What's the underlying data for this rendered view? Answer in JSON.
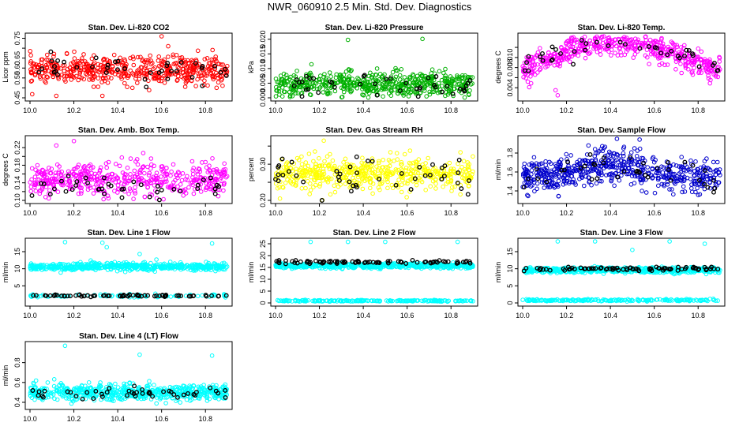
{
  "figure_title": "NWR_060910  2.5 Min. Std. Dev. Diagnostics",
  "chart_data": [
    {
      "type": "scatter",
      "title": "Stan. Dev. Li-820 CO2",
      "ylabel": "Licor ppm",
      "color": "#ff0000",
      "marker": "open-circle",
      "xlim": [
        10.0,
        10.9
      ],
      "ylim": [
        0.45,
        0.76
      ],
      "xticks": [
        "10.0",
        "10.2",
        "10.4",
        "10.6",
        "10.8"
      ],
      "yticks": [
        "0.45",
        "0.50",
        "0.55",
        "0.60",
        "0.65",
        "0.70",
        "0.75"
      ],
      "yticklabels": [
        "0.45",
        "",
        "0.55",
        "0.60",
        "0.65",
        "",
        "0.75"
      ],
      "n_points": 520,
      "mean": 0.59,
      "spread": 0.035,
      "highlighted": {
        "color": "#000000",
        "n_points": 40,
        "mean": 0.59,
        "spread": 0.03
      },
      "outliers": [
        {
          "x": 10.6,
          "y": 0.76
        },
        {
          "x": 10.12,
          "y": 0.46
        },
        {
          "x": 10.33,
          "y": 0.46
        },
        {
          "x": 10.63,
          "y": 0.71
        }
      ]
    },
    {
      "type": "scatter",
      "title": "Stan. Dev. Li-820 Pressure",
      "ylabel": "kPa",
      "color": "#00b000",
      "marker": "open-circle",
      "xlim": [
        10.0,
        10.9
      ],
      "ylim": [
        0.0,
        0.021
      ],
      "xticks": [
        "10.0",
        "10.2",
        "10.4",
        "10.6",
        "10.8"
      ],
      "yticks": [
        "0.000",
        "0.005",
        "0.010",
        "0.015",
        "0.020"
      ],
      "yticklabels": [
        "0.000",
        "0.005",
        "0.010",
        "0.015",
        "0.020"
      ],
      "n_points": 560,
      "mean": 0.0045,
      "spread": 0.0022,
      "highlighted": {
        "color": "#000000",
        "n_points": 40,
        "mean": 0.0045,
        "spread": 0.002
      },
      "outliers": [
        {
          "x": 10.33,
          "y": 0.0198
        },
        {
          "x": 10.67,
          "y": 0.0201
        }
      ]
    },
    {
      "type": "scatter",
      "title": "Stan. Dev. Li-820 Temp.",
      "ylabel": "degrees C",
      "color": "#ff00ff",
      "marker": "open-circle",
      "xlim": [
        10.0,
        10.9
      ],
      "ylim": [
        0.002,
        0.0142
      ],
      "xticks": [
        "10.0",
        "10.2",
        "10.4",
        "10.6",
        "10.8"
      ],
      "yticks": [
        "0.004",
        "0.006",
        "0.008",
        "0.010",
        "0.012"
      ],
      "yticklabels": [
        "0.004",
        "",
        "0.008",
        "0.010",
        ""
      ],
      "n_points": 520,
      "trend": "arch",
      "mean": 0.0095,
      "spread": 0.0012,
      "highlighted": {
        "color": "#000000",
        "n_points": 40
      },
      "outliers": [
        {
          "x": 10.16,
          "y": 0.0025
        },
        {
          "x": 10.15,
          "y": 0.0035
        }
      ]
    },
    {
      "type": "scatter",
      "title": "Stan. Dev. Amb. Box Temp.",
      "ylabel": "degrees C",
      "color": "#ff00ff",
      "marker": "open-circle",
      "xlim": [
        10.0,
        10.9
      ],
      "ylim": [
        0.1,
        0.24
      ],
      "xticks": [
        "10.0",
        "10.2",
        "10.4",
        "10.6",
        "10.8"
      ],
      "yticks": [
        "0.10",
        "0.12",
        "0.14",
        "0.16",
        "0.18",
        "0.20",
        "0.22"
      ],
      "yticklabels": [
        "0.10",
        "",
        "0.14",
        "",
        "0.18",
        "",
        "0.22"
      ],
      "n_points": 480,
      "mean": 0.145,
      "spread": 0.02,
      "highlighted": {
        "color": "#000000",
        "n_points": 40,
        "mean": 0.13,
        "spread": 0.012
      },
      "outliers": [
        {
          "x": 10.2,
          "y": 0.235
        },
        {
          "x": 10.12,
          "y": 0.225
        }
      ]
    },
    {
      "type": "scatter",
      "title": "Stan. Dev. Gas Stream RH",
      "ylabel": "percent",
      "color": "#ffff00",
      "marker": "open-circle",
      "xlim": [
        10.0,
        10.9
      ],
      "ylim": [
        0.2,
        0.37
      ],
      "xticks": [
        "10.0",
        "10.2",
        "10.4",
        "10.6",
        "10.8"
      ],
      "yticks": [
        "0.20",
        "0.25",
        "0.30",
        "0.35"
      ],
      "yticklabels": [
        "0.20",
        "",
        "0.30",
        ""
      ],
      "n_points": 520,
      "mean": 0.275,
      "spread": 0.022,
      "highlighted": {
        "color": "#000000",
        "n_points": 45,
        "mean": 0.27,
        "spread": 0.025
      },
      "outliers": [
        {
          "x": 10.22,
          "y": 0.365
        },
        {
          "x": 10.02,
          "y": 0.205
        }
      ]
    },
    {
      "type": "scatter",
      "title": "Stan. Dev. Sample Flow",
      "ylabel": "ml/min",
      "color": "#0000cc",
      "marker": "open-circle",
      "xlim": [
        10.0,
        10.9
      ],
      "ylim": [
        1.3,
        1.95
      ],
      "xticks": [
        "10.0",
        "10.2",
        "10.4",
        "10.6",
        "10.8"
      ],
      "yticks": [
        "1.4",
        "1.6",
        "1.8"
      ],
      "yticklabels": [
        "1.4",
        "1.6",
        "1.8"
      ],
      "n_points": 600,
      "trend": "bump",
      "mean": 1.55,
      "spread": 0.09,
      "highlighted": {
        "color": "#000000",
        "n_points": 40
      },
      "outliers": [
        {
          "x": 10.43,
          "y": 1.95
        },
        {
          "x": 10.3,
          "y": 1.88
        }
      ]
    },
    {
      "type": "scatter",
      "title": "Stan. Dev. Line 1 Flow",
      "ylabel": "ml/min",
      "color": "#00ffff",
      "marker": "open-circle",
      "xlim": [
        10.0,
        10.9
      ],
      "ylim": [
        0,
        18
      ],
      "xticks": [
        "10.0",
        "10.2",
        "10.4",
        "10.6",
        "10.8"
      ],
      "yticks": [
        "5",
        "10",
        "15"
      ],
      "yticklabels": [
        "5",
        "10",
        "15"
      ],
      "bands": [
        {
          "color": "#00ffff",
          "n_points": 560,
          "mean": 10.6,
          "spread": 0.55
        },
        {
          "color": "#00ffff",
          "n_points": 90,
          "mean": 2.1,
          "spread": 0.2
        },
        {
          "color": "#000000",
          "n_points": 70,
          "mean": 2.1,
          "spread": 0.15
        }
      ],
      "outliers": [
        {
          "x": 10.16,
          "y": 17.8
        },
        {
          "x": 10.33,
          "y": 17.6
        },
        {
          "x": 10.35,
          "y": 16.3
        },
        {
          "x": 10.5,
          "y": 14.3
        },
        {
          "x": 10.83,
          "y": 17.4
        }
      ]
    },
    {
      "type": "scatter",
      "title": "Stan. Dev. Line 2 Flow",
      "ylabel": "ml/min",
      "color": "#00ffff",
      "marker": "open-circle",
      "xlim": [
        10.0,
        10.9
      ],
      "ylim": [
        0,
        26
      ],
      "xticks": [
        "10.0",
        "10.2",
        "10.4",
        "10.6",
        "10.8"
      ],
      "yticks": [
        "0",
        "5",
        "10",
        "15",
        "20",
        "25"
      ],
      "yticklabels": [
        "0",
        "5",
        "10",
        "15",
        "20",
        "25"
      ],
      "bands": [
        {
          "color": "#00ffff",
          "n_points": 560,
          "mean": 15.7,
          "spread": 0.5
        },
        {
          "color": "#000000",
          "n_points": 80,
          "mean": 17.3,
          "spread": 0.3
        },
        {
          "color": "#00ffff",
          "n_points": 200,
          "mean": 0.9,
          "spread": 0.15
        }
      ],
      "outliers": [
        {
          "x": 10.16,
          "y": 25.8
        },
        {
          "x": 10.33,
          "y": 25.8
        },
        {
          "x": 10.5,
          "y": 25.8
        },
        {
          "x": 10.83,
          "y": 25.8
        }
      ]
    },
    {
      "type": "scatter",
      "title": "Stan. Dev. Line 3 Flow",
      "ylabel": "ml/min",
      "color": "#00ffff",
      "marker": "open-circle",
      "xlim": [
        10.0,
        10.9
      ],
      "ylim": [
        0,
        18
      ],
      "xticks": [
        "10.0",
        "10.2",
        "10.4",
        "10.6",
        "10.8"
      ],
      "yticks": [
        "0",
        "5",
        "10",
        "15"
      ],
      "yticklabels": [
        "0",
        "5",
        "10",
        "15"
      ],
      "bands": [
        {
          "color": "#00ffff",
          "n_points": 560,
          "mean": 9.6,
          "spread": 0.4
        },
        {
          "color": "#000000",
          "n_points": 80,
          "mean": 10.0,
          "spread": 0.25
        },
        {
          "color": "#00ffff",
          "n_points": 200,
          "mean": 0.8,
          "spread": 0.15
        }
      ],
      "outliers": [
        {
          "x": 10.16,
          "y": 18
        },
        {
          "x": 10.33,
          "y": 18
        },
        {
          "x": 10.5,
          "y": 15.5
        },
        {
          "x": 10.67,
          "y": 18
        },
        {
          "x": 10.83,
          "y": 17.3
        }
      ]
    },
    {
      "type": "scatter",
      "title": "Stan. Dev. Line 4 (LT) Flow",
      "ylabel": "ml/min",
      "color": "#00ffff",
      "marker": "open-circle",
      "xlim": [
        10.0,
        10.9
      ],
      "ylim": [
        0.36,
        0.98
      ],
      "xticks": [
        "10.0",
        "10.2",
        "10.4",
        "10.6",
        "10.8"
      ],
      "yticks": [
        "0.4",
        "0.6",
        "0.8"
      ],
      "yticklabels": [
        "0.4",
        "0.6",
        "0.8"
      ],
      "n_points": 600,
      "mean": 0.5,
      "spread": 0.04,
      "highlighted": {
        "color": "#000000",
        "n_points": 45,
        "mean": 0.49,
        "spread": 0.035
      },
      "outliers": [
        {
          "x": 10.16,
          "y": 0.97
        },
        {
          "x": 10.5,
          "y": 0.88
        },
        {
          "x": 10.83,
          "y": 0.87
        }
      ]
    }
  ]
}
